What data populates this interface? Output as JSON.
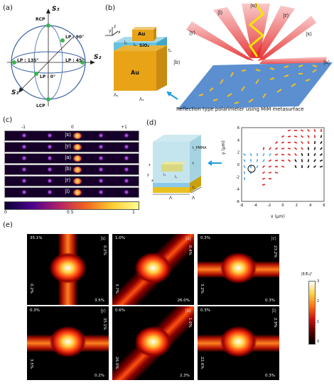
{
  "panels": {
    "a": {
      "label": "(a)",
      "s1": "S₁",
      "s2": "S₂",
      "s3": "S₃",
      "rcp": "RCP",
      "lcp": "LCP",
      "lp90": "LP : 90°",
      "lp135": "LP : 135°",
      "lp45": "LP : 45°",
      "lp0": "LP : 0°"
    },
    "b": {
      "label": "(b)",
      "au_top": "Au",
      "sio2": "SiO₂",
      "au_bottom": "Au",
      "lambda_x": "Λₓ",
      "lambda_y": "Λᵧ",
      "l_x": "lₓ",
      "l_y": "lᵧ",
      "t_s": "tₛ",
      "axis_x": "x",
      "axis_y": "y",
      "axis_z": "z",
      "ket_b": "|b⟩",
      "ket_u": "|u⟩",
      "ket_l": "|l⟩",
      "ket_r": "|r⟩",
      "ket_y": "|y⟩",
      "ket_x": "|x⟩",
      "ket_a": "|a⟩",
      "caption": "Reflection type polarimeter using MIM metasurface"
    },
    "c": {
      "label": "(c)",
      "orders": [
        "-1",
        "0",
        "+1"
      ],
      "rows": [
        "|x⟩",
        "|y⟩",
        "|a⟩",
        "|b⟩",
        "|r⟩",
        "|l⟩"
      ],
      "cbar_ticks": [
        "0",
        "0.5",
        "1"
      ]
    },
    "d": {
      "label": "(d)",
      "t_pmma": "t_PMMA",
      "t": "t",
      "t_s": "tₛ",
      "l_x": "lₓ",
      "l_y": "lᵧ",
      "lambda1": "Λ",
      "lambda2": "Λ",
      "axis_x": "x",
      "axis_y": "y",
      "axis_z": "z",
      "ylabel": "y (μm)",
      "xlabel": "x (μm)",
      "yticks": [
        "6",
        "4",
        "2",
        "0",
        "-2",
        "-4",
        "-6"
      ],
      "xticks": [
        "-6",
        "-4",
        "-2",
        "0",
        "2",
        "4",
        "6"
      ]
    },
    "e": {
      "label": "(e)",
      "cbar_label": "|E/E₀|²",
      "cbar_ticks": [
        "3",
        "2",
        "1",
        "0"
      ],
      "tiles": [
        {
          "ket": "|x⟩",
          "tl": "35.1%",
          "tr": "0.2%",
          "bl": "0.2%",
          "br": "3.5%"
        },
        {
          "ket": "|a⟩",
          "tl": "1.0%",
          "tr": "0.4%",
          "bl": "3.7%",
          "br": "26.0%"
        },
        {
          "ket": "|r⟩",
          "tl": "0.3%",
          "tr": "23.2%",
          "bl": "3.2%",
          "br": "0.3%"
        },
        {
          "ket": "|y⟩",
          "tl": "0.3%",
          "tr": "35.1%",
          "bl": "3.5%",
          "br": "0.2%"
        },
        {
          "ket": "|b⟩",
          "tl": "0.6%",
          "tr": "1.0%",
          "bl": "26.0%",
          "br": "2.3%"
        },
        {
          "ket": "|l⟩",
          "tl": "0.3%",
          "tr": "2.9%",
          "bl": "22.6%",
          "br": "0.3%"
        }
      ]
    }
  }
}
